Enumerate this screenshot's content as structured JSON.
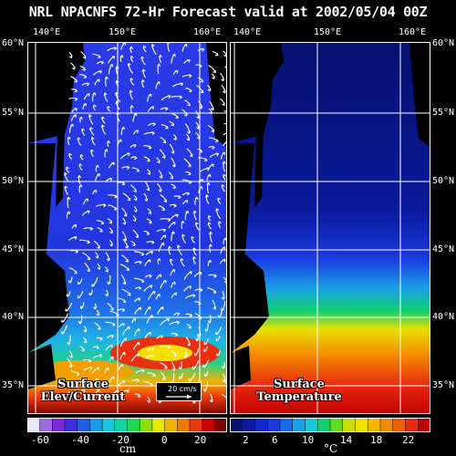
{
  "title": "NRL NPACNFS 72-Hr Forecast valid at 2002/05/04 00Z",
  "lon_labels": [
    "140°E",
    "150°E",
    "160°E"
  ],
  "lat_labels_left": [
    "60°N",
    "55°N",
    "50°N",
    "45°N",
    "40°N",
    "35°N"
  ],
  "lat_labels_right": [
    "60°N",
    "55°N",
    "50°N",
    "45°N",
    "40°N",
    "35°N"
  ],
  "left_panel": {
    "label_line1": "Surface",
    "label_line2": "Elev/Current",
    "reference_vector": "20 cm/s",
    "colorbar_ticks": [
      "-60",
      "-40",
      "-20",
      "0",
      "20"
    ],
    "colorbar_unit": "cm"
  },
  "right_panel": {
    "label_line1": "Surface",
    "label_line2": "Temperature",
    "colorbar_ticks": [
      "2",
      "6",
      "10",
      "14",
      "18",
      "22"
    ],
    "colorbar_unit": "°C"
  },
  "colors": {
    "ocean_deep": "#1a2fd8",
    "sst_cold": "#06106e",
    "land": "#000000",
    "grid": "#ffffff"
  }
}
